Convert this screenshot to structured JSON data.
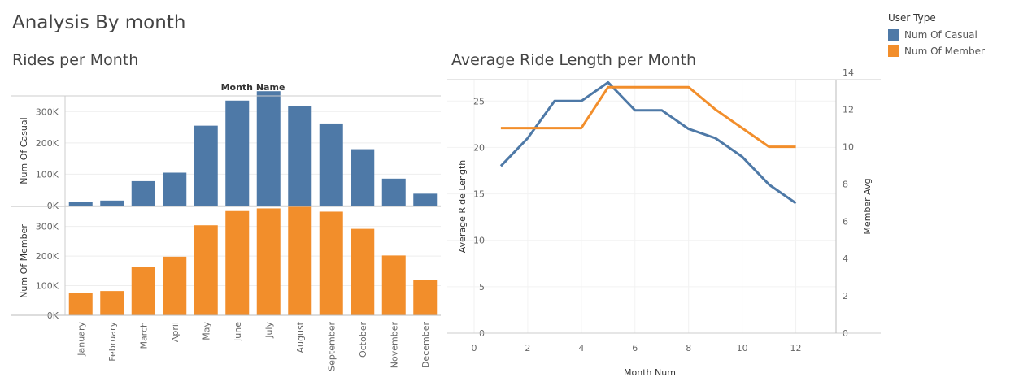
{
  "dashboard": {
    "title": "Analysis By month"
  },
  "legend": {
    "title": "User Type",
    "items": [
      {
        "label": "Num Of Casual",
        "color": "#4e79a7"
      },
      {
        "label": "Num Of Member",
        "color": "#f28e2b"
      }
    ]
  },
  "chart_data": [
    {
      "type": "bar",
      "title": "Rides per Month",
      "header": "Month Name",
      "categories": [
        "January",
        "February",
        "March",
        "April",
        "May",
        "June",
        "July",
        "August",
        "September",
        "October",
        "November",
        "December"
      ],
      "panels": [
        {
          "ylabel": "Num Of Casual",
          "color": "#4e79a7",
          "ylim": [
            0,
            350000
          ],
          "yticks": [
            0,
            100000,
            200000,
            300000
          ],
          "ytick_labels": [
            "0K",
            "100K",
            "200K",
            "300K"
          ],
          "values": [
            12000,
            16000,
            78000,
            105000,
            255000,
            335000,
            365000,
            318000,
            262000,
            180000,
            86000,
            38000
          ]
        },
        {
          "ylabel": "Num Of Member",
          "color": "#f28e2b",
          "ylim": [
            0,
            365000
          ],
          "yticks": [
            0,
            100000,
            200000,
            300000
          ],
          "ytick_labels": [
            "0K",
            "100K",
            "200K",
            "300K"
          ],
          "values": [
            76000,
            82000,
            162000,
            198000,
            304000,
            352000,
            361000,
            370000,
            350000,
            292000,
            202000,
            118000
          ]
        }
      ]
    },
    {
      "type": "line",
      "title": "Average Ride Length per Month",
      "xlabel": "Month Num",
      "ylabel": "Average Ride Length",
      "y2label": "Member Avg",
      "xlim": [
        -1,
        13.5
      ],
      "xticks": [
        0,
        2,
        4,
        6,
        8,
        10,
        12
      ],
      "ylim": [
        0,
        27.3
      ],
      "yticks": [
        0,
        5,
        10,
        15,
        20,
        25
      ],
      "y2lim": [
        0,
        13.6
      ],
      "y2ticks": [
        0,
        2,
        4,
        6,
        8,
        10,
        12,
        14
      ],
      "x": [
        1,
        2,
        3,
        4,
        5,
        6,
        7,
        8,
        9,
        10,
        11,
        12
      ],
      "series": [
        {
          "name": "Num Of Casual",
          "axis": "left",
          "color": "#4e79a7",
          "values": [
            18,
            21,
            25,
            25,
            27,
            24,
            24,
            22,
            21,
            19,
            16,
            14
          ]
        },
        {
          "name": "Num Of Member",
          "axis": "right",
          "color": "#f28e2b",
          "values": [
            11,
            11,
            11,
            11,
            13.2,
            13.2,
            13.2,
            13.2,
            12,
            11,
            10,
            10
          ]
        }
      ]
    }
  ]
}
